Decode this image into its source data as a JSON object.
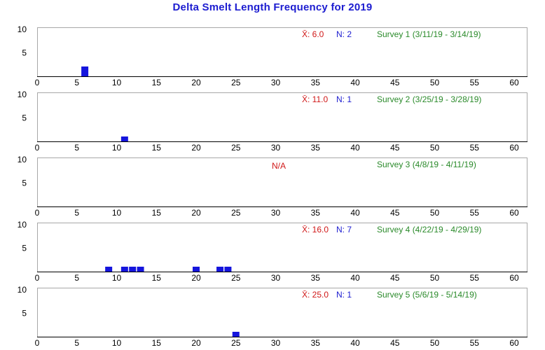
{
  "title": "Delta Smelt Length Frequency for 2019",
  "colors": {
    "title": "#1c1cd0",
    "bar": "#1515dd",
    "mean": "#d01818",
    "n": "#1c1cd0",
    "survey": "#2a8a2a",
    "na": "#d01818",
    "frame": "#a8a8a8"
  },
  "chart_data": [
    {
      "type": "bar",
      "survey": "Survey 1 (3/11/19 - 3/14/19)",
      "mean_text": "X̄: 6.0",
      "n_text": "N: 2",
      "na_text": "",
      "xlim": [
        0,
        60
      ],
      "ylim": [
        0,
        10
      ],
      "x_ticks": [
        0,
        5,
        10,
        15,
        20,
        25,
        30,
        35,
        40,
        45,
        50,
        55,
        60
      ],
      "y_ticks": [
        5,
        10
      ],
      "bars": [
        {
          "x": 6,
          "count": 2
        }
      ]
    },
    {
      "type": "bar",
      "survey": "Survey 2 (3/25/19 - 3/28/19)",
      "mean_text": "X̄: 11.0",
      "n_text": "N: 1",
      "na_text": "",
      "xlim": [
        0,
        60
      ],
      "ylim": [
        0,
        10
      ],
      "x_ticks": [
        0,
        5,
        10,
        15,
        20,
        25,
        30,
        35,
        40,
        45,
        50,
        55,
        60
      ],
      "y_ticks": [
        5,
        10
      ],
      "bars": [
        {
          "x": 11,
          "count": 1
        }
      ]
    },
    {
      "type": "bar",
      "survey": "Survey 3 (4/8/19 - 4/11/19)",
      "mean_text": "",
      "n_text": "",
      "na_text": "N/A",
      "xlim": [
        0,
        60
      ],
      "ylim": [
        0,
        10
      ],
      "x_ticks": [
        0,
        5,
        10,
        15,
        20,
        25,
        30,
        35,
        40,
        45,
        50,
        55,
        60
      ],
      "y_ticks": [
        5,
        10
      ],
      "bars": []
    },
    {
      "type": "bar",
      "survey": "Survey 4 (4/22/19 - 4/29/19)",
      "mean_text": "X̄: 16.0",
      "n_text": "N: 7",
      "na_text": "",
      "xlim": [
        0,
        60
      ],
      "ylim": [
        0,
        10
      ],
      "x_ticks": [
        0,
        5,
        10,
        15,
        20,
        25,
        30,
        35,
        40,
        45,
        50,
        55,
        60
      ],
      "y_ticks": [
        5,
        10
      ],
      "bars": [
        {
          "x": 9,
          "count": 1
        },
        {
          "x": 11,
          "count": 1
        },
        {
          "x": 12,
          "count": 1
        },
        {
          "x": 13,
          "count": 1
        },
        {
          "x": 20,
          "count": 1
        },
        {
          "x": 23,
          "count": 1
        },
        {
          "x": 24,
          "count": 1
        }
      ]
    },
    {
      "type": "bar",
      "survey": "Survey 5 (5/6/19 - 5/14/19)",
      "mean_text": "X̄: 25.0",
      "n_text": "N: 1",
      "na_text": "",
      "xlim": [
        0,
        60
      ],
      "ylim": [
        0,
        10
      ],
      "x_ticks": [
        0,
        5,
        10,
        15,
        20,
        25,
        30,
        35,
        40,
        45,
        50,
        55,
        60
      ],
      "y_ticks": [
        5,
        10
      ],
      "bars": [
        {
          "x": 25,
          "count": 1
        }
      ]
    }
  ]
}
